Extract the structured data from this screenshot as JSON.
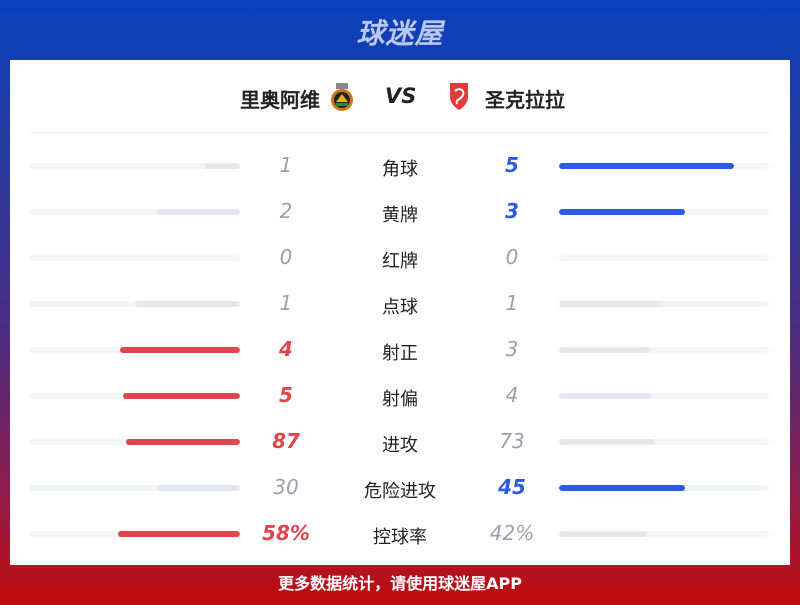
{
  "brand": {
    "logo_text": "球迷屋"
  },
  "match": {
    "home": "里奥阿维",
    "vs": "VS",
    "away": "圣克拉拉"
  },
  "colors": {
    "home": "#e0464b",
    "away": "#2b5ce0",
    "muted_fill": "#e3e7ef",
    "muted_text": "#9aa0ab"
  },
  "stats": [
    {
      "label": "角球",
      "home": "1",
      "away": "5",
      "home_frac": 0.167,
      "away_frac": 0.833,
      "leader": "away"
    },
    {
      "label": "黄牌",
      "home": "2",
      "away": "3",
      "home_frac": 0.4,
      "away_frac": 0.6,
      "leader": "away"
    },
    {
      "label": "红牌",
      "home": "0",
      "away": "0",
      "home_frac": 0,
      "away_frac": 0,
      "leader": "none"
    },
    {
      "label": "点球",
      "home": "1",
      "away": "1",
      "home_frac": 0.5,
      "away_frac": 0.5,
      "leader": "none"
    },
    {
      "label": "射正",
      "home": "4",
      "away": "3",
      "home_frac": 0.571,
      "away_frac": 0.429,
      "leader": "home"
    },
    {
      "label": "射偏",
      "home": "5",
      "away": "4",
      "home_frac": 0.556,
      "away_frac": 0.444,
      "leader": "home"
    },
    {
      "label": "进攻",
      "home": "87",
      "away": "73",
      "home_frac": 0.544,
      "away_frac": 0.456,
      "leader": "home"
    },
    {
      "label": "危险进攻",
      "home": "30",
      "away": "45",
      "home_frac": 0.4,
      "away_frac": 0.6,
      "leader": "away"
    },
    {
      "label": "控球率",
      "home": "58%",
      "away": "42%",
      "home_frac": 0.58,
      "away_frac": 0.42,
      "leader": "home"
    }
  ],
  "footer": {
    "text": "更多数据统计，请使用球迷屋APP"
  }
}
